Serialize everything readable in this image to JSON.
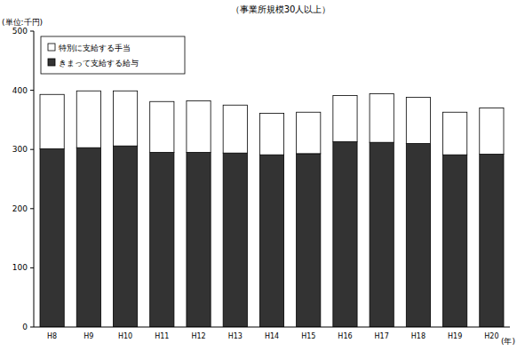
{
  "chart_data": {
    "type": "bar",
    "title": "（事業所規模30人以上）",
    "y_label": "(単位:千円)",
    "x_label": "(年)",
    "categories": [
      "H8",
      "H9",
      "H10",
      "H11",
      "H12",
      "H13",
      "H14",
      "H15",
      "H16",
      "H17",
      "H18",
      "H19",
      "H20"
    ],
    "series": [
      {
        "name": "きまって支給する給与",
        "color": "#333333",
        "values": [
          301,
          303,
          306,
          295,
          295,
          294,
          291,
          293,
          313,
          312,
          310,
          291,
          292
        ]
      },
      {
        "name": "特別に支給する手当",
        "color": "#ffffff",
        "values": [
          92,
          96,
          93,
          86,
          87,
          81,
          70,
          70,
          78,
          82,
          78,
          72,
          78
        ]
      }
    ],
    "stacked": true,
    "ylim": [
      0,
      500
    ],
    "yticks": [
      0,
      100,
      200,
      300,
      400,
      500
    ],
    "grid": false,
    "legend": "top-left"
  }
}
